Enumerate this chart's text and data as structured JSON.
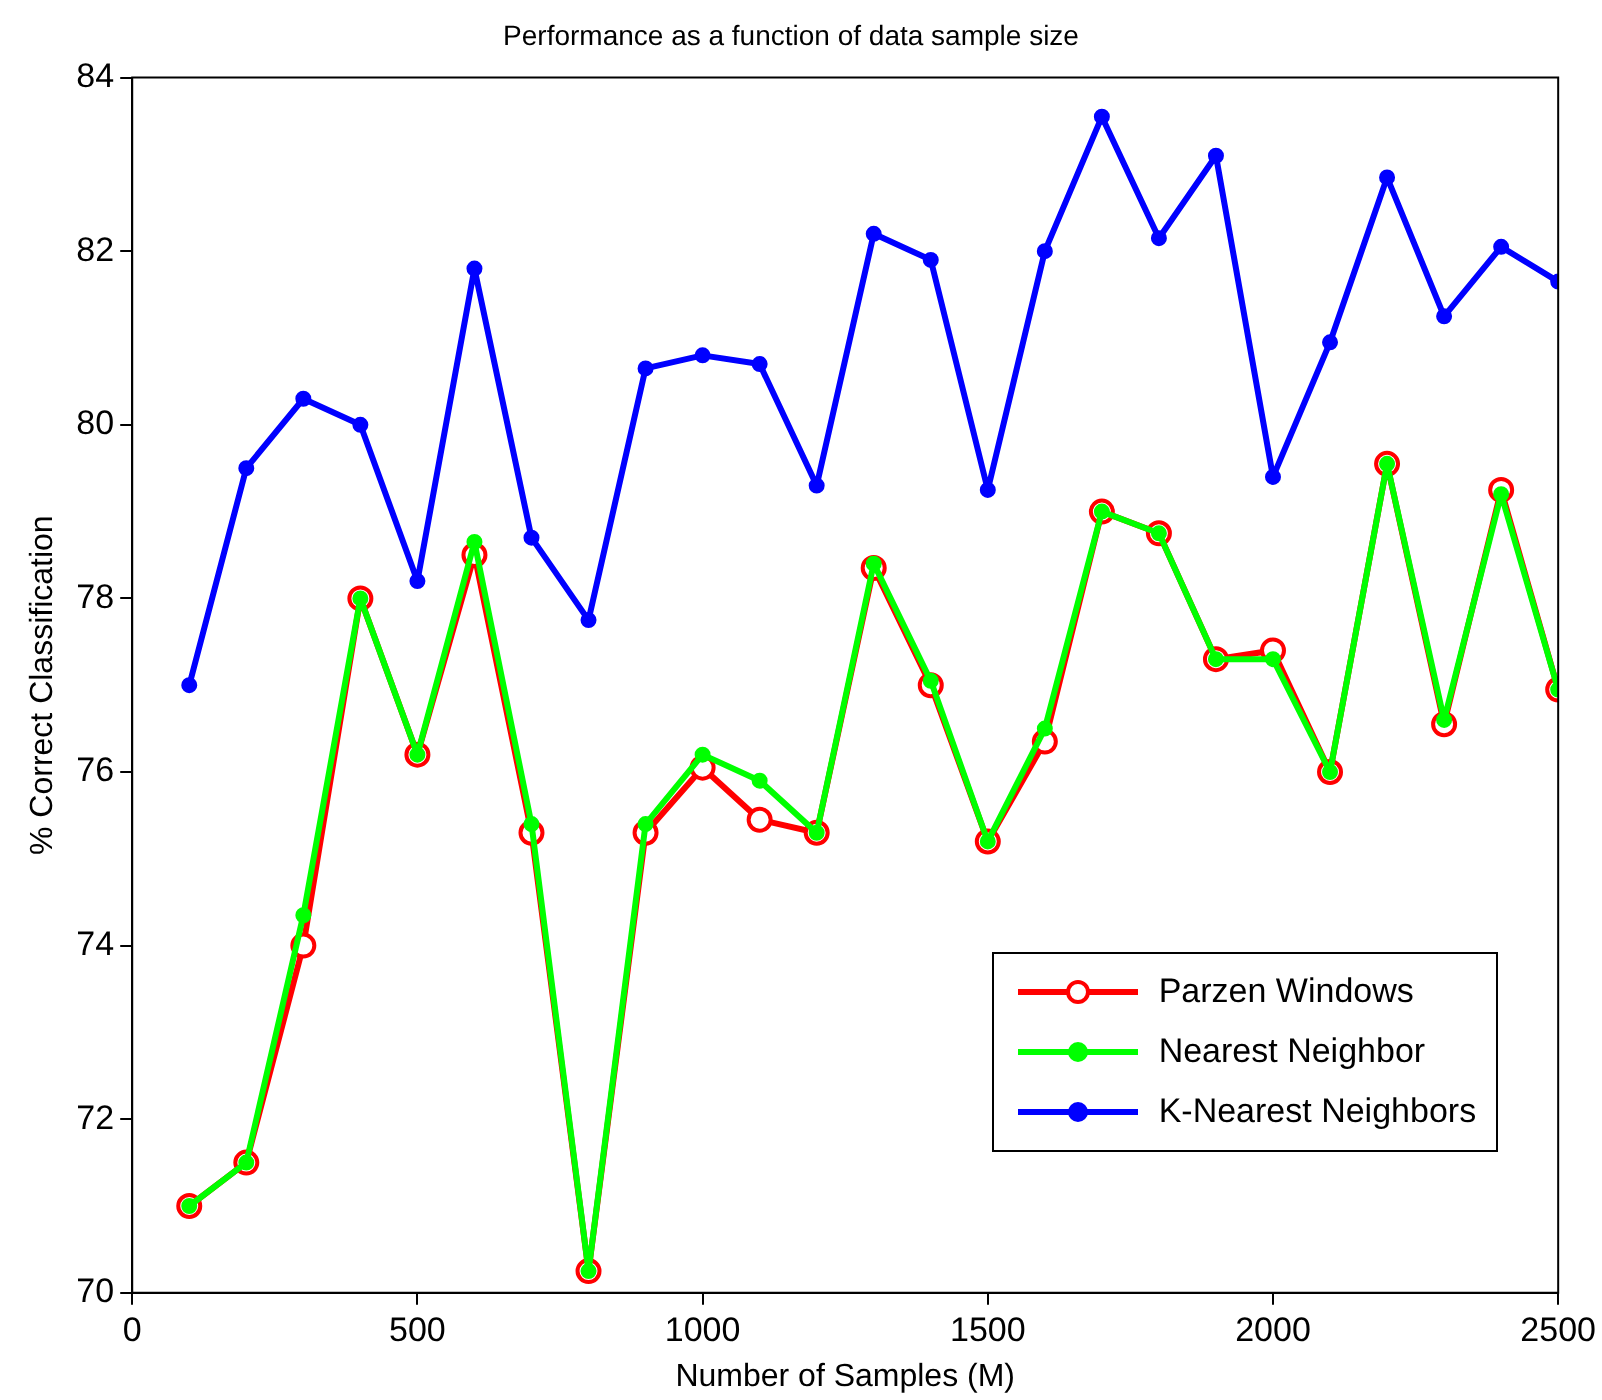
{
  "chart_data": {
    "type": "line",
    "title": "Performance as a function of data sample size",
    "xlabel": "Number of Samples (M)",
    "ylabel": "% Correct Classification",
    "x": [
      100,
      200,
      300,
      400,
      500,
      600,
      700,
      800,
      900,
      1000,
      1100,
      1200,
      1300,
      1400,
      1500,
      1600,
      1700,
      1800,
      1900,
      2000,
      2100,
      2200,
      2300,
      2400,
      2500
    ],
    "series": [
      {
        "name": "Parzen Windows",
        "color": "#ff0000",
        "values": [
          71.0,
          71.5,
          74.0,
          78.0,
          76.2,
          78.5,
          75.3,
          70.25,
          75.3,
          76.05,
          75.45,
          75.3,
          78.35,
          77.0,
          75.2,
          76.35,
          79.0,
          78.75,
          77.3,
          77.4,
          76.0,
          79.55,
          76.55,
          79.25,
          76.95
        ]
      },
      {
        "name": "Nearest Neighbor",
        "color": "#00ff00",
        "values": [
          71.0,
          71.5,
          74.35,
          78.0,
          76.2,
          78.65,
          75.4,
          70.25,
          75.4,
          76.2,
          75.9,
          75.3,
          78.4,
          77.05,
          75.2,
          76.5,
          79.0,
          78.75,
          77.3,
          77.3,
          76.0,
          79.55,
          76.6,
          79.2,
          76.95
        ]
      },
      {
        "name": "K-Nearest Neighbors",
        "color": "#0000ff",
        "values": [
          77.0,
          79.5,
          80.3,
          80.0,
          78.2,
          81.8,
          78.7,
          77.75,
          80.65,
          80.8,
          80.7,
          79.3,
          82.2,
          81.9,
          79.25,
          82.0,
          83.55,
          82.15,
          83.1,
          79.4,
          80.95,
          82.85,
          81.25,
          82.05,
          81.65
        ]
      }
    ],
    "xlim": [
      0,
      2500
    ],
    "xticks": [
      0,
      500,
      1000,
      1500,
      2000,
      2500
    ],
    "ylim": [
      70,
      84
    ],
    "yticks": [
      70,
      72,
      74,
      76,
      78,
      80,
      82,
      84
    ],
    "grid": false,
    "legend": "bottom right",
    "marker": "circle",
    "line_style": "solid"
  }
}
